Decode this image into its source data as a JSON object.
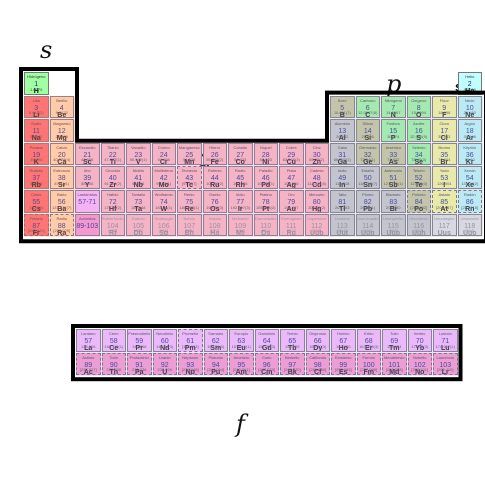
{
  "block_labels": {
    "s": "s",
    "p": "p",
    "d": "d",
    "f": "f"
  },
  "legend_symbol": "s",
  "colors": {
    "alkali": "#ff6666",
    "alkaline": "#ffdead",
    "transition": "#ffc0c0",
    "posttransition": "#cccccc",
    "metalloid": "#cccc99",
    "nonmetal": "#a0ffa0",
    "halogen": "#ffff99",
    "noble": "#c0ffff",
    "lanthanide": "#ffbfff",
    "actinide": "#ff99cc",
    "unknown": "#e8e8e8",
    "block_s": "#ff9999",
    "block_p": "#b0b0d8",
    "block_d": "#d898d8",
    "block_f": "#b8a8e8"
  },
  "main_rows": [
    [
      {
        "n": "1",
        "s": "H",
        "name": "Hidrógeno",
        "m": "1.0079",
        "c": "nonmetal"
      },
      null,
      null,
      null,
      null,
      null,
      null,
      null,
      null,
      null,
      null,
      null,
      null,
      null,
      null,
      null,
      null,
      {
        "n": "2",
        "s": "He",
        "name": "Helio",
        "m": "4.0026",
        "c": "noble"
      }
    ],
    [
      {
        "n": "3",
        "s": "Li",
        "name": "Litio",
        "m": "6.941(2)",
        "c": "alkali"
      },
      {
        "n": "4",
        "s": "Be",
        "name": "Berilio",
        "m": "9.0122",
        "c": "alkaline"
      },
      null,
      null,
      null,
      null,
      null,
      null,
      null,
      null,
      null,
      null,
      {
        "n": "5",
        "s": "B",
        "name": "Boro",
        "m": "10.811(7)",
        "c": "metalloid"
      },
      {
        "n": "6",
        "s": "C",
        "name": "Carbono",
        "m": "12.0107(8)",
        "c": "nonmetal"
      },
      {
        "n": "7",
        "s": "N",
        "name": "Nitrógeno",
        "m": "14.0067",
        "c": "nonmetal"
      },
      {
        "n": "8",
        "s": "O",
        "name": "Oxígeno",
        "m": "15.9994",
        "c": "nonmetal"
      },
      {
        "n": "9",
        "s": "F",
        "name": "Flúor",
        "m": "18.998",
        "c": "halogen"
      },
      {
        "n": "10",
        "s": "Ne",
        "name": "Neón",
        "m": "20.180",
        "c": "noble"
      }
    ],
    [
      {
        "n": "11",
        "s": "Na",
        "name": "Sodio",
        "m": "22.990",
        "c": "alkali"
      },
      {
        "n": "12",
        "s": "Mg",
        "name": "Magnesio",
        "m": "24.305",
        "c": "alkaline"
      },
      null,
      null,
      null,
      null,
      null,
      null,
      null,
      null,
      null,
      null,
      {
        "n": "13",
        "s": "Al",
        "name": "Aluminio",
        "m": "26.982",
        "c": "posttransition"
      },
      {
        "n": "14",
        "s": "Si",
        "name": "Silicio",
        "m": "28.086",
        "c": "metalloid"
      },
      {
        "n": "15",
        "s": "P",
        "name": "Fósforo",
        "m": "30.974",
        "c": "nonmetal"
      },
      {
        "n": "16",
        "s": "S",
        "name": "Azufre",
        "m": "32.065(5)",
        "c": "nonmetal"
      },
      {
        "n": "17",
        "s": "Cl",
        "name": "Cloro",
        "m": "35.453",
        "c": "halogen"
      },
      {
        "n": "18",
        "s": "Ar",
        "name": "Argón",
        "m": "39.948",
        "c": "noble"
      }
    ],
    [
      {
        "n": "19",
        "s": "K",
        "name": "Potasio",
        "m": "39.098",
        "c": "alkali"
      },
      {
        "n": "20",
        "s": "Ca",
        "name": "Calcio",
        "m": "40.078(4)",
        "c": "alkaline"
      },
      {
        "n": "21",
        "s": "Sc",
        "name": "Escandio",
        "m": "44.956",
        "c": "transition"
      },
      {
        "n": "22",
        "s": "Ti",
        "name": "Titanio",
        "m": "47.867(1)",
        "c": "transition"
      },
      {
        "n": "23",
        "s": "V",
        "name": "Vanadio",
        "m": "50.942(1)",
        "c": "transition"
      },
      {
        "n": "24",
        "s": "Cr",
        "name": "Cromo",
        "m": "51.996",
        "c": "transition"
      },
      {
        "n": "25",
        "s": "Mn",
        "name": "Manganeso",
        "m": "54.938",
        "c": "transition"
      },
      {
        "n": "26",
        "s": "Fe",
        "name": "Hierro",
        "m": "55.845(2)",
        "c": "transition"
      },
      {
        "n": "27",
        "s": "Co",
        "name": "Cobalto",
        "m": "58.933",
        "c": "transition"
      },
      {
        "n": "28",
        "s": "Ni",
        "name": "Níquel",
        "m": "58.693",
        "c": "transition"
      },
      {
        "n": "29",
        "s": "Cu",
        "name": "Cobre",
        "m": "63.546(3)",
        "c": "transition"
      },
      {
        "n": "30",
        "s": "Zn",
        "name": "Cinc",
        "m": "65.39(2)",
        "c": "transition"
      },
      {
        "n": "31",
        "s": "Ga",
        "name": "Galio",
        "m": "69.723(1)",
        "c": "posttransition"
      },
      {
        "n": "32",
        "s": "Ge",
        "name": "Germanio",
        "m": "72.64(1)",
        "c": "metalloid"
      },
      {
        "n": "33",
        "s": "As",
        "name": "Arsénico",
        "m": "74.922",
        "c": "metalloid"
      },
      {
        "n": "34",
        "s": "Se",
        "name": "Selenio",
        "m": "78.96(3)",
        "c": "nonmetal"
      },
      {
        "n": "35",
        "s": "Br",
        "name": "Bromo",
        "m": "79.904",
        "c": "halogen"
      },
      {
        "n": "36",
        "s": "Kr",
        "name": "Kriptón",
        "m": "83.80",
        "c": "noble"
      }
    ],
    [
      {
        "n": "37",
        "s": "Rb",
        "name": "Rubidio",
        "m": "85.468",
        "c": "alkali"
      },
      {
        "n": "38",
        "s": "Sr",
        "name": "Estroncio",
        "m": "87.62(1)",
        "c": "alkaline"
      },
      {
        "n": "39",
        "s": "Y",
        "name": "Itrio",
        "m": "88.906",
        "c": "transition"
      },
      {
        "n": "40",
        "s": "Zr",
        "name": "Circonio",
        "m": "91.224(2)",
        "c": "transition"
      },
      {
        "n": "41",
        "s": "Nb",
        "name": "Niobio",
        "m": "92.906",
        "c": "transition"
      },
      {
        "n": "42",
        "s": "Mo",
        "name": "Molibdeno",
        "m": "95.94(1)",
        "c": "transition"
      },
      {
        "n": "43",
        "s": "Tc",
        "name": "Tecnecio",
        "m": "[97.907]",
        "c": "transition",
        "dashed": true
      },
      {
        "n": "44",
        "s": "Ru",
        "name": "Rutenio",
        "m": "101.07(2)",
        "c": "transition"
      },
      {
        "n": "45",
        "s": "Rh",
        "name": "Rodio",
        "m": "102.906",
        "c": "transition"
      },
      {
        "n": "46",
        "s": "Pd",
        "name": "Paladio",
        "m": "106.42(1)",
        "c": "transition"
      },
      {
        "n": "47",
        "s": "Ag",
        "name": "Plata",
        "m": "107.868",
        "c": "transition"
      },
      {
        "n": "48",
        "s": "Cd",
        "name": "Cadmio",
        "m": "112.411(8)",
        "c": "transition"
      },
      {
        "n": "49",
        "s": "In",
        "name": "Indio",
        "m": "114.818",
        "c": "posttransition"
      },
      {
        "n": "50",
        "s": "Sn",
        "name": "Estaño",
        "m": "118.710(7)",
        "c": "posttransition"
      },
      {
        "n": "51",
        "s": "Sb",
        "name": "Antimonio",
        "m": "121.760(1)",
        "c": "metalloid"
      },
      {
        "n": "52",
        "s": "Te",
        "name": "Telurio",
        "m": "127.60(3)",
        "c": "metalloid"
      },
      {
        "n": "53",
        "s": "I",
        "name": "Yodo",
        "m": "126.904",
        "c": "halogen"
      },
      {
        "n": "54",
        "s": "Xe",
        "name": "Xenón",
        "m": "131.29(2)",
        "c": "noble"
      }
    ],
    [
      {
        "n": "55",
        "s": "Cs",
        "name": "Cesio",
        "m": "132.905",
        "c": "alkali"
      },
      {
        "n": "56",
        "s": "Ba",
        "name": "Bario",
        "m": "137.327(7)",
        "c": "alkaline"
      },
      {
        "n": "57-71",
        "s": "",
        "name": "Lantánidos",
        "m": "",
        "c": "lanthanide"
      },
      {
        "n": "72",
        "s": "Hf",
        "name": "Hafnio",
        "m": "178.49(2)",
        "c": "transition"
      },
      {
        "n": "73",
        "s": "Ta",
        "name": "Tantalio",
        "m": "180.948",
        "c": "transition"
      },
      {
        "n": "74",
        "s": "W",
        "name": "Wolframio",
        "m": "183.84(1)",
        "c": "transition"
      },
      {
        "n": "75",
        "s": "Re",
        "name": "Renio",
        "m": "186.207(1)",
        "c": "transition"
      },
      {
        "n": "76",
        "s": "Os",
        "name": "Osmio",
        "m": "190.23(3)",
        "c": "transition"
      },
      {
        "n": "77",
        "s": "Ir",
        "name": "Iridio",
        "m": "192.217(3)",
        "c": "transition"
      },
      {
        "n": "78",
        "s": "Pt",
        "name": "Platino",
        "m": "195.078(2)",
        "c": "transition"
      },
      {
        "n": "79",
        "s": "Au",
        "name": "Oro",
        "m": "196.967",
        "c": "transition"
      },
      {
        "n": "80",
        "s": "Hg",
        "name": "Mercurio",
        "m": "200.59(2)",
        "c": "transition"
      },
      {
        "n": "81",
        "s": "Tl",
        "name": "Talio",
        "m": "204.383",
        "c": "posttransition"
      },
      {
        "n": "82",
        "s": "Pb",
        "name": "Plomo",
        "m": "207.2(1)",
        "c": "posttransition"
      },
      {
        "n": "83",
        "s": "Bi",
        "name": "Bismuto",
        "m": "208.980",
        "c": "posttransition"
      },
      {
        "n": "84",
        "s": "Po",
        "name": "Polonio",
        "m": "[208.982]",
        "c": "metalloid",
        "dashed": true
      },
      {
        "n": "85",
        "s": "At",
        "name": "Astato",
        "m": "[209.987]",
        "c": "halogen",
        "dashed": true
      },
      {
        "n": "86",
        "s": "Rn",
        "name": "Radón",
        "m": "[222.018]",
        "c": "noble",
        "dashed": true
      }
    ],
    [
      {
        "n": "87",
        "s": "Fr",
        "name": "Francio",
        "m": "[223.020]",
        "c": "alkali",
        "dashed": true
      },
      {
        "n": "88",
        "s": "Ra",
        "name": "Radio",
        "m": "[226.025]",
        "c": "alkaline",
        "dashed": true
      },
      {
        "n": "89-103",
        "s": "",
        "name": "Actínidos",
        "m": "",
        "c": "actinide"
      },
      {
        "n": "104",
        "s": "Rf",
        "name": "Rutherfordio",
        "m": "[261]",
        "c": "transition",
        "faded": true
      },
      {
        "n": "105",
        "s": "Db",
        "name": "Dubnio",
        "m": "[262]",
        "c": "transition",
        "faded": true
      },
      {
        "n": "106",
        "s": "Sg",
        "name": "Seaborgio",
        "m": "[266]",
        "c": "transition",
        "faded": true
      },
      {
        "n": "107",
        "s": "Bh",
        "name": "Bohrio",
        "m": "[264]",
        "c": "transition",
        "faded": true
      },
      {
        "n": "108",
        "s": "Hs",
        "name": "Hassio",
        "m": "[277]",
        "c": "transition",
        "faded": true
      },
      {
        "n": "109",
        "s": "Mt",
        "name": "Meitnerio",
        "m": "[268]",
        "c": "transition",
        "faded": true
      },
      {
        "n": "110",
        "s": "Ds",
        "name": "Darmstadtio",
        "m": "[281]",
        "c": "transition",
        "faded": true
      },
      {
        "n": "111",
        "s": "Rg",
        "name": "Roentgenio",
        "m": "[272]",
        "c": "transition",
        "faded": true
      },
      {
        "n": "112",
        "s": "Uub",
        "name": "Copernicio",
        "m": "[285]",
        "c": "transition",
        "faded": true
      },
      {
        "n": "113",
        "s": "Uut",
        "name": "Ununtrio",
        "m": "[284]",
        "c": "posttransition",
        "faded": true
      },
      {
        "n": "114",
        "s": "Uuq",
        "name": "Ununcuadio",
        "m": "[289]",
        "c": "posttransition",
        "faded": true
      },
      {
        "n": "115",
        "s": "Uup",
        "name": "Ununpentio",
        "m": "[288]",
        "c": "posttransition",
        "faded": true
      },
      {
        "n": "116",
        "s": "Uuh",
        "name": "Ununhexio",
        "m": "[292]",
        "c": "posttransition",
        "faded": true
      },
      {
        "n": "117",
        "s": "Uus",
        "name": "Ununseptio",
        "m": "",
        "c": "unknown",
        "faded": true
      },
      {
        "n": "118",
        "s": "Uuo",
        "name": "Ununoctio",
        "m": "[294]",
        "c": "unknown",
        "faded": true
      }
    ]
  ],
  "f_rows": [
    [
      {
        "n": "57",
        "s": "La",
        "name": "Lantano",
        "m": "138.906",
        "c": "lanthanide"
      },
      {
        "n": "58",
        "s": "Ce",
        "name": "Cerio",
        "m": "140.116(1)",
        "c": "lanthanide"
      },
      {
        "n": "59",
        "s": "Pr",
        "name": "Praseodimio",
        "m": "140.908",
        "c": "lanthanide"
      },
      {
        "n": "60",
        "s": "Nd",
        "name": "Neodimio",
        "m": "144.24(3)",
        "c": "lanthanide"
      },
      {
        "n": "61",
        "s": "Pm",
        "name": "Prometio",
        "m": "[144.913]",
        "c": "lanthanide",
        "dashed": true
      },
      {
        "n": "62",
        "s": "Sm",
        "name": "Samario",
        "m": "150.36(3)",
        "c": "lanthanide"
      },
      {
        "n": "63",
        "s": "Eu",
        "name": "Europio",
        "m": "151.964(1)",
        "c": "lanthanide"
      },
      {
        "n": "64",
        "s": "Gd",
        "name": "Gadolinio",
        "m": "157.25(3)",
        "c": "lanthanide"
      },
      {
        "n": "65",
        "s": "Tb",
        "name": "Terbio",
        "m": "158.925",
        "c": "lanthanide"
      },
      {
        "n": "66",
        "s": "Dy",
        "name": "Disprosio",
        "m": "162.50(3)",
        "c": "lanthanide"
      },
      {
        "n": "67",
        "s": "Ho",
        "name": "Holmio",
        "m": "164.930",
        "c": "lanthanide"
      },
      {
        "n": "68",
        "s": "Er",
        "name": "Erbio",
        "m": "167.259(3)",
        "c": "lanthanide"
      },
      {
        "n": "69",
        "s": "Tm",
        "name": "Tulio",
        "m": "168.934",
        "c": "lanthanide"
      },
      {
        "n": "70",
        "s": "Yb",
        "name": "Iterbio",
        "m": "173.04(3)",
        "c": "lanthanide"
      },
      {
        "n": "71",
        "s": "Lu",
        "name": "Lutecio",
        "m": "174.967(1)",
        "c": "lanthanide"
      }
    ],
    [
      {
        "n": "89",
        "s": "Ac",
        "name": "Actinio",
        "m": "[227.027]",
        "c": "actinide",
        "dashed": true
      },
      {
        "n": "90",
        "s": "Th",
        "name": "Torio",
        "m": "232.038",
        "c": "actinide",
        "dashed": true
      },
      {
        "n": "91",
        "s": "Pa",
        "name": "Protactinio",
        "m": "231.036",
        "c": "actinide",
        "dashed": true
      },
      {
        "n": "92",
        "s": "U",
        "name": "Uranio",
        "m": "238.029",
        "c": "actinide",
        "dashed": true
      },
      {
        "n": "93",
        "s": "Np",
        "name": "Neptunio",
        "m": "[237.048]",
        "c": "actinide",
        "dashed": true
      },
      {
        "n": "94",
        "s": "Pu",
        "name": "Plutonio",
        "m": "[244.064]",
        "c": "actinide",
        "dashed": true
      },
      {
        "n": "95",
        "s": "Am",
        "name": "Americio",
        "m": "[243.061]",
        "c": "actinide",
        "dashed": true
      },
      {
        "n": "96",
        "s": "Cm",
        "name": "Curio",
        "m": "[247.070]",
        "c": "actinide",
        "dashed": true
      },
      {
        "n": "97",
        "s": "Bk",
        "name": "Berkelio",
        "m": "[247.070]",
        "c": "actinide",
        "dashed": true
      },
      {
        "n": "98",
        "s": "Cf",
        "name": "Californio",
        "m": "[251.080]",
        "c": "actinide",
        "dashed": true
      },
      {
        "n": "99",
        "s": "Es",
        "name": "Einstenio",
        "m": "[252.083]",
        "c": "actinide",
        "dashed": true
      },
      {
        "n": "100",
        "s": "Fm",
        "name": "Fermio",
        "m": "[257.095]",
        "c": "actinide",
        "dashed": true
      },
      {
        "n": "101",
        "s": "Md",
        "name": "Mendelevio",
        "m": "[258.098]",
        "c": "actinide",
        "dashed": true
      },
      {
        "n": "102",
        "s": "No",
        "name": "Nobelio",
        "m": "[259.101]",
        "c": "actinide",
        "dashed": true
      },
      {
        "n": "103",
        "s": "Lr",
        "name": "Laurencio",
        "m": "[262.110]",
        "c": "actinide",
        "dashed": true
      }
    ]
  ]
}
